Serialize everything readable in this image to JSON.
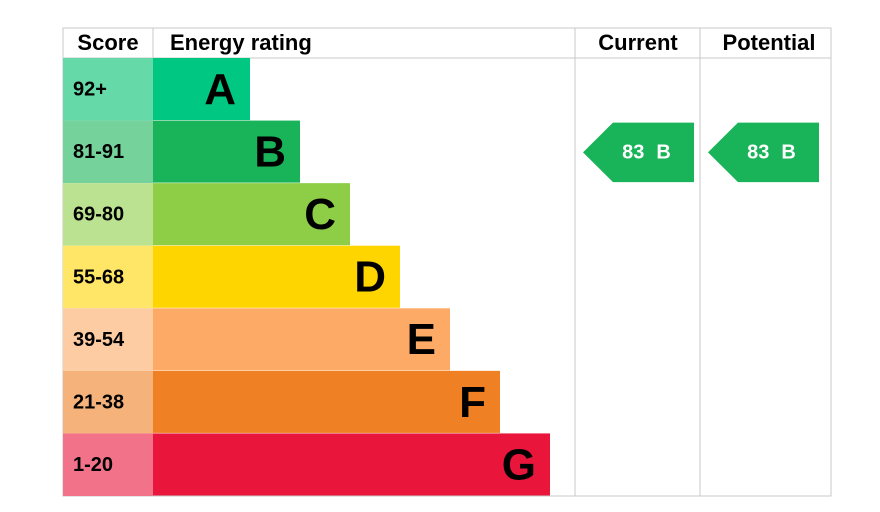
{
  "header": {
    "score": "Score",
    "rating": "Energy rating",
    "current": "Current",
    "potential": "Potential"
  },
  "bands": [
    {
      "score": "92+",
      "letter": "A",
      "color": "#00c781",
      "score_color": "#66d9a8"
    },
    {
      "score": "81-91",
      "letter": "B",
      "color": "#19b459",
      "score_color": "#75d29b"
    },
    {
      "score": "69-80",
      "letter": "C",
      "color": "#8dce46",
      "score_color": "#bbe290"
    },
    {
      "score": "55-68",
      "letter": "D",
      "color": "#ffd500",
      "score_color": "#ffe666"
    },
    {
      "score": "39-54",
      "letter": "E",
      "color": "#fcaa65",
      "score_color": "#fdcca3"
    },
    {
      "score": "21-38",
      "letter": "F",
      "color": "#ef8023",
      "score_color": "#f5b37b"
    },
    {
      "score": "1-20",
      "letter": "G",
      "color": "#e9153b",
      "score_color": "#f27389"
    }
  ],
  "current": {
    "value": 83,
    "letter": "B"
  },
  "potential": {
    "value": 83,
    "letter": "B"
  }
}
